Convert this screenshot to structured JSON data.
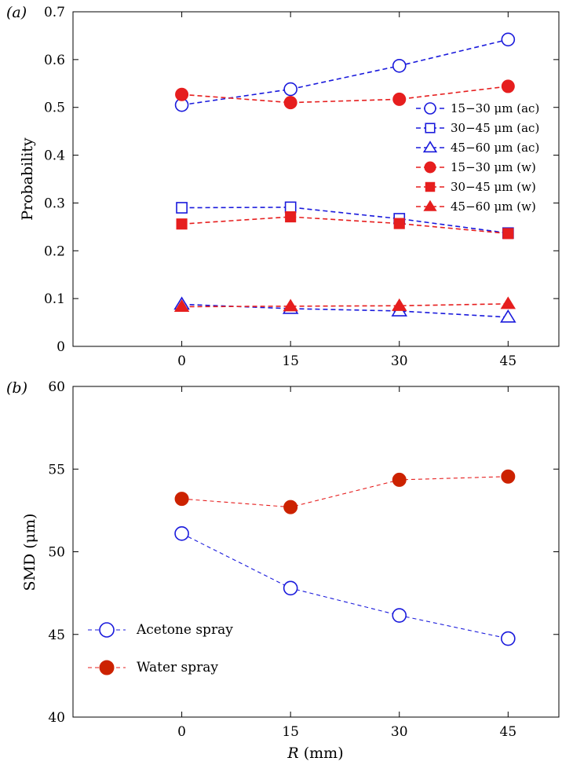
{
  "colors": {
    "blue": "#1a1adc",
    "red": "#e61e1e",
    "red_marker": "#cc2200"
  },
  "chart_data": [
    {
      "type": "line",
      "panel_label": "(a)",
      "ylabel": "Probability",
      "xlabel": "",
      "xlim": [
        -15,
        52
      ],
      "ylim": [
        0,
        0.7
      ],
      "x": [
        0,
        15,
        30,
        45
      ],
      "xticks": [
        "0",
        "15",
        "30",
        "45"
      ],
      "yticks": [
        "0",
        "0.1",
        "0.2",
        "0.3",
        "0.4",
        "0.5",
        "0.6",
        "0.7"
      ],
      "legend_position": "right",
      "series": [
        {
          "name": "15−30 μm (ac)",
          "values": [
            0.505,
            0.538,
            0.587,
            0.642
          ],
          "marker": "circle-open",
          "color": "#1a1adc"
        },
        {
          "name": "30−45 μm (ac)",
          "values": [
            0.29,
            0.291,
            0.267,
            0.237
          ],
          "marker": "square-open",
          "color": "#1a1adc"
        },
        {
          "name": "45−60 μm (ac)",
          "values": [
            0.088,
            0.079,
            0.074,
            0.061
          ],
          "marker": "triangle-open",
          "color": "#1a1adc"
        },
        {
          "name": "15−30 μm (w)",
          "values": [
            0.527,
            0.51,
            0.517,
            0.544
          ],
          "marker": "circle-filled",
          "color": "#e61e1e"
        },
        {
          "name": "30−45 μm (w)",
          "values": [
            0.256,
            0.271,
            0.257,
            0.236
          ],
          "marker": "square-filled",
          "color": "#e61e1e"
        },
        {
          "name": "45−60 μm (w)",
          "values": [
            0.083,
            0.084,
            0.085,
            0.089
          ],
          "marker": "triangle-filled",
          "color": "#e61e1e"
        }
      ]
    },
    {
      "type": "line",
      "panel_label": "(b)",
      "ylabel": "SMD (μm)",
      "xlabel_italic": "R",
      "xlabel_rest": " (mm)",
      "xlim": [
        -15,
        52
      ],
      "ylim": [
        40,
        60
      ],
      "x": [
        0,
        15,
        30,
        45
      ],
      "xticks": [
        "0",
        "15",
        "30",
        "45"
      ],
      "yticks": [
        "40",
        "45",
        "50",
        "55",
        "60"
      ],
      "legend_position": "bottom-left",
      "series": [
        {
          "name": "Acetone spray",
          "values": [
            51.1,
            47.8,
            46.15,
            44.75
          ],
          "marker": "circle-open",
          "color": "#1a1adc"
        },
        {
          "name": "Water spray",
          "values": [
            53.2,
            52.7,
            54.35,
            54.55
          ],
          "marker": "circle-filled",
          "color": "#e61e1e"
        }
      ]
    }
  ]
}
